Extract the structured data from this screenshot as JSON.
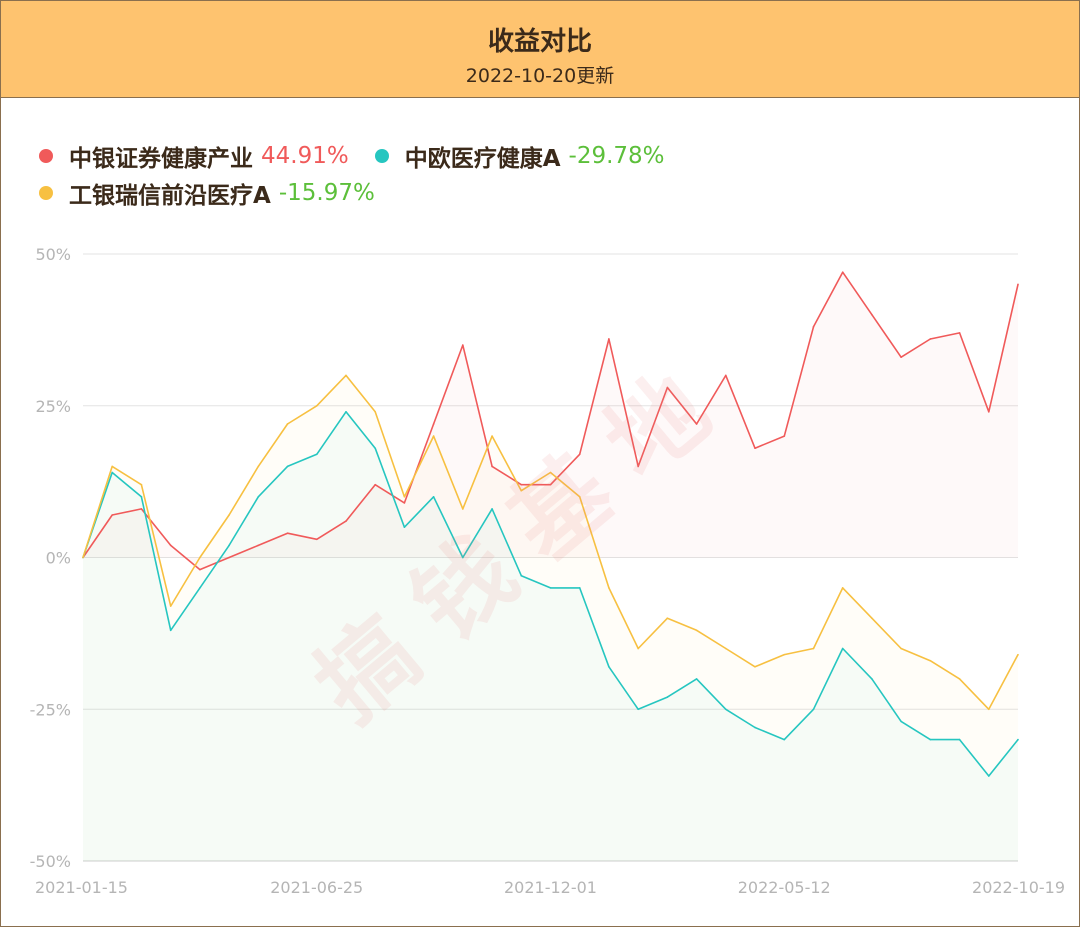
{
  "header": {
    "title": "收益对比",
    "subtitle": "2022-10-20更新"
  },
  "watermark": "搞钱基地",
  "legend": [
    {
      "name": "中银证券健康产业",
      "value": "44.91%",
      "color": "#f05a5a",
      "value_color": "#f05a5a"
    },
    {
      "name": "中欧医疗健康A",
      "value": "-29.78%",
      "color": "#26c6c0",
      "value_color": "#5cbf3a"
    },
    {
      "name": "工银瑞信前沿医疗A",
      "value": "-15.97%",
      "color": "#f7c041",
      "value_color": "#5cbf3a"
    }
  ],
  "chart_data": {
    "type": "line",
    "title": "收益对比",
    "x_ticks": [
      "2021-01-15",
      "2021-06-25",
      "2021-12-01",
      "2022-05-12",
      "2022-10-19"
    ],
    "y_ticks": [
      "50%",
      "25%",
      "0%",
      "-25%",
      "-50%"
    ],
    "ylim": [
      -50,
      50
    ],
    "grid": true,
    "legend_position": "top-left",
    "x": [
      "2021-01-15",
      "2021-02-05",
      "2021-02-26",
      "2021-03-19",
      "2021-04-09",
      "2021-04-30",
      "2021-05-21",
      "2021-06-11",
      "2021-06-25",
      "2021-07-16",
      "2021-08-06",
      "2021-08-27",
      "2021-09-17",
      "2021-10-08",
      "2021-10-29",
      "2021-11-19",
      "2021-12-01",
      "2021-12-22",
      "2022-01-12",
      "2022-02-02",
      "2022-02-23",
      "2022-03-16",
      "2022-04-06",
      "2022-04-27",
      "2022-05-12",
      "2022-06-02",
      "2022-06-23",
      "2022-07-14",
      "2022-08-04",
      "2022-08-25",
      "2022-09-15",
      "2022-10-06",
      "2022-10-19"
    ],
    "series": [
      {
        "name": "中银证券健康产业",
        "color": "#f05a5a",
        "values": [
          0,
          7,
          8,
          2,
          -2,
          0,
          2,
          4,
          3,
          6,
          12,
          9,
          22,
          35,
          15,
          12,
          12,
          17,
          36,
          15,
          28,
          22,
          30,
          18,
          20,
          38,
          47,
          40,
          33,
          36,
          37,
          24,
          45
        ]
      },
      {
        "name": "中欧医疗健康A",
        "color": "#26c6c0",
        "values": [
          0,
          14,
          10,
          -12,
          -5,
          2,
          10,
          15,
          17,
          24,
          18,
          5,
          10,
          0,
          8,
          -3,
          -5,
          -5,
          -18,
          -25,
          -23,
          -20,
          -25,
          -28,
          -30,
          -25,
          -15,
          -20,
          -27,
          -30,
          -30,
          -36,
          -30
        ]
      },
      {
        "name": "工银瑞信前沿医疗A",
        "color": "#f7c041",
        "values": [
          0,
          15,
          12,
          -8,
          0,
          7,
          15,
          22,
          25,
          30,
          24,
          10,
          20,
          8,
          20,
          11,
          14,
          10,
          -5,
          -15,
          -10,
          -12,
          -15,
          -18,
          -16,
          -15,
          -5,
          -10,
          -15,
          -17,
          -20,
          -25,
          -16
        ]
      }
    ]
  }
}
